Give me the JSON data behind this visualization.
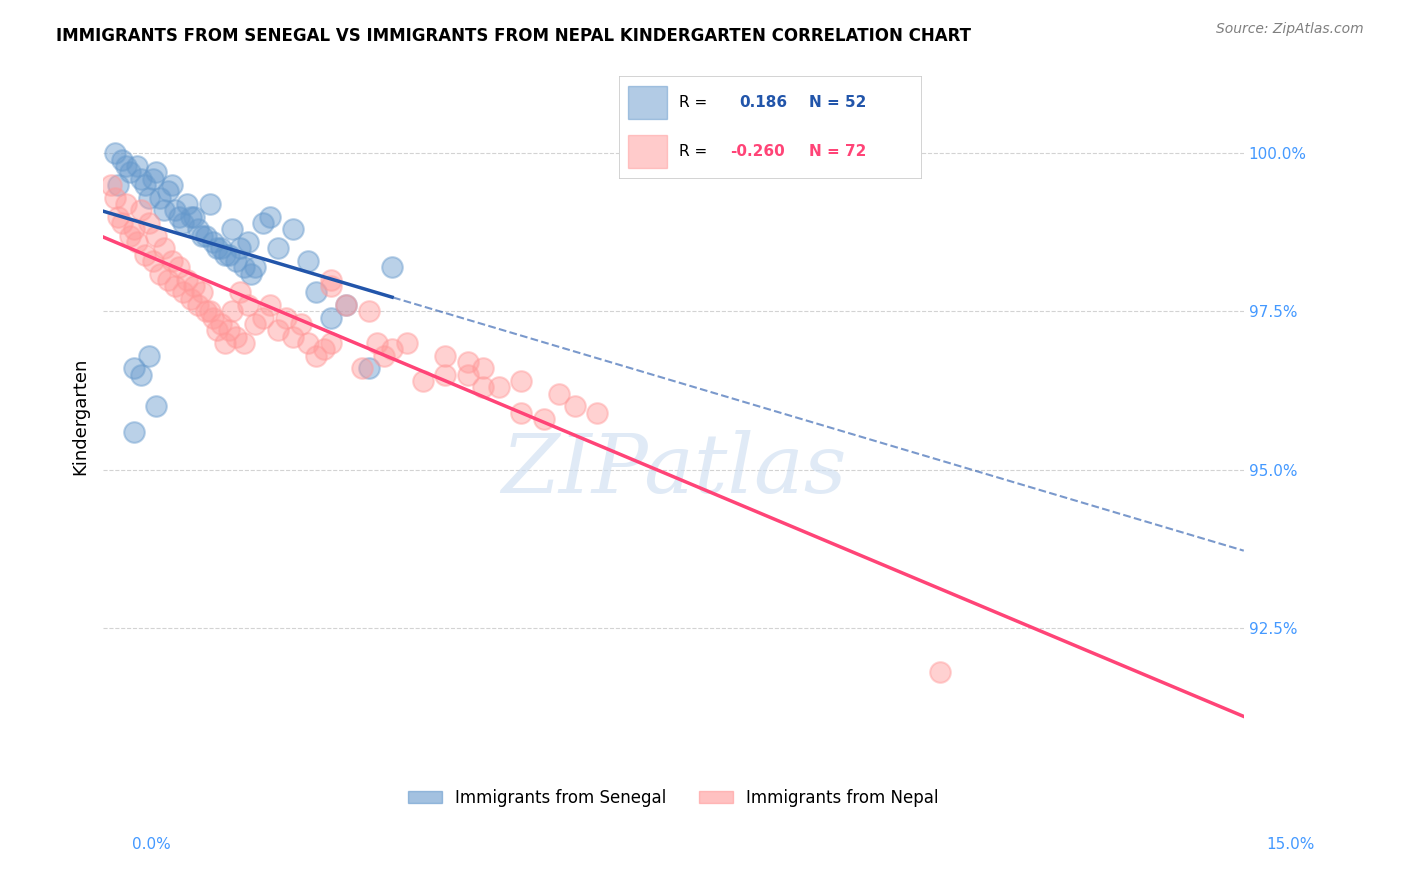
{
  "title": "IMMIGRANTS FROM SENEGAL VS IMMIGRANTS FROM NEPAL KINDERGARTEN CORRELATION CHART",
  "source": "Source: ZipAtlas.com",
  "ylabel": "Kindergarten",
  "ytick_labels": [
    "100.0%",
    "97.5%",
    "95.0%",
    "92.5%"
  ],
  "ytick_values": [
    100.0,
    97.5,
    95.0,
    92.5
  ],
  "xlim": [
    0.0,
    15.0
  ],
  "ylim": [
    90.5,
    101.2
  ],
  "senegal_R": 0.186,
  "senegal_N": 52,
  "nepal_R": -0.26,
  "nepal_N": 72,
  "senegal_color": "#6699CC",
  "nepal_color": "#FF9999",
  "trend_senegal_color": "#2255AA",
  "trend_nepal_color": "#FF4477",
  "senegal_x": [
    0.2,
    0.3,
    0.5,
    0.6,
    0.7,
    0.8,
    0.9,
    1.0,
    1.1,
    1.2,
    1.3,
    1.4,
    1.5,
    1.6,
    1.7,
    1.8,
    1.9,
    2.0,
    2.1,
    2.2,
    2.3,
    2.5,
    2.7,
    2.8,
    3.0,
    3.2,
    3.5,
    0.15,
    0.25,
    0.35,
    0.45,
    0.55,
    0.65,
    0.75,
    0.85,
    0.95,
    1.05,
    1.15,
    1.25,
    1.35,
    1.45,
    1.55,
    1.65,
    1.75,
    1.85,
    1.95,
    0.4,
    0.5,
    0.6,
    0.7,
    0.4,
    3.8
  ],
  "senegal_y": [
    99.5,
    99.8,
    99.6,
    99.3,
    99.7,
    99.1,
    99.5,
    99.0,
    99.2,
    99.0,
    98.7,
    99.2,
    98.5,
    98.4,
    98.8,
    98.5,
    98.6,
    98.2,
    98.9,
    99.0,
    98.5,
    98.8,
    98.3,
    97.8,
    97.4,
    97.6,
    96.6,
    100.0,
    99.9,
    99.7,
    99.8,
    99.5,
    99.6,
    99.3,
    99.4,
    99.1,
    98.9,
    99.0,
    98.8,
    98.7,
    98.6,
    98.5,
    98.4,
    98.3,
    98.2,
    98.1,
    96.6,
    96.5,
    96.8,
    96.0,
    95.6,
    98.2
  ],
  "nepal_x": [
    0.1,
    0.2,
    0.3,
    0.4,
    0.5,
    0.6,
    0.7,
    0.8,
    0.9,
    1.0,
    1.1,
    1.2,
    1.3,
    1.4,
    1.5,
    1.6,
    1.7,
    1.8,
    1.9,
    2.0,
    2.1,
    2.2,
    2.3,
    2.4,
    2.5,
    2.6,
    2.7,
    2.8,
    2.9,
    3.0,
    3.5,
    4.0,
    4.5,
    5.0,
    5.5,
    6.0,
    0.15,
    0.25,
    0.35,
    0.45,
    0.55,
    0.65,
    0.75,
    0.85,
    0.95,
    1.05,
    1.15,
    1.25,
    1.35,
    1.45,
    1.55,
    1.65,
    1.75,
    1.85,
    3.0,
    3.2,
    3.8,
    4.5,
    5.0,
    6.2,
    4.8,
    5.5,
    3.7,
    4.2,
    5.8,
    6.5,
    3.4,
    3.6,
    4.8,
    5.2,
    3.0,
    11.0
  ],
  "nepal_y": [
    99.5,
    99.0,
    99.2,
    98.8,
    99.1,
    98.9,
    98.7,
    98.5,
    98.3,
    98.2,
    98.0,
    97.9,
    97.8,
    97.5,
    97.2,
    97.0,
    97.5,
    97.8,
    97.6,
    97.3,
    97.4,
    97.6,
    97.2,
    97.4,
    97.1,
    97.3,
    97.0,
    96.8,
    96.9,
    97.0,
    97.5,
    97.0,
    96.8,
    96.6,
    96.4,
    96.2,
    99.3,
    98.9,
    98.7,
    98.6,
    98.4,
    98.3,
    98.1,
    98.0,
    97.9,
    97.8,
    97.7,
    97.6,
    97.5,
    97.4,
    97.3,
    97.2,
    97.1,
    97.0,
    97.9,
    97.6,
    96.9,
    96.5,
    96.3,
    96.0,
    96.7,
    95.9,
    96.8,
    96.4,
    95.8,
    95.9,
    96.6,
    97.0,
    96.5,
    96.3,
    98.0,
    91.8
  ]
}
